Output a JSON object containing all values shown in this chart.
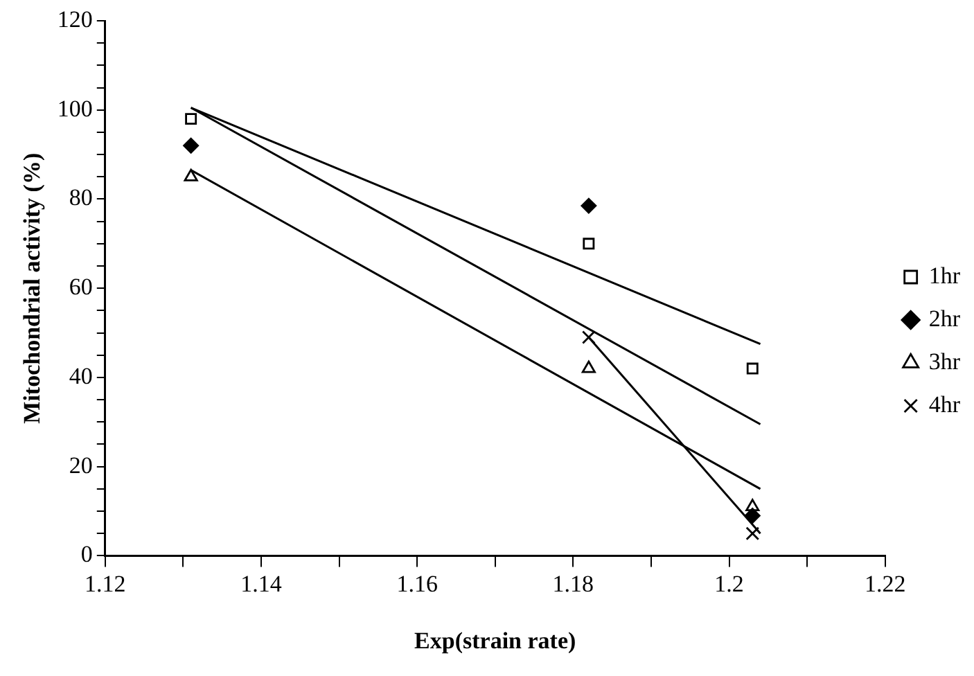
{
  "chart_data": {
    "type": "scatter",
    "xlabel": "Exp(strain rate)",
    "ylabel": "Mitochondrial activity (%)",
    "x": [
      1.131,
      1.182,
      1.203
    ],
    "xlim": [
      1.12,
      1.22
    ],
    "xticks": [
      1.12,
      {
        "value": 1.13,
        "label": null
      },
      1.14,
      {
        "value": 1.15,
        "label": null
      },
      1.16,
      {
        "value": 1.17,
        "label": null
      },
      1.18,
      {
        "value": 1.19,
        "label": null
      },
      {
        "value": 1.2,
        "label": "1.2"
      },
      {
        "value": 1.21,
        "label": null
      },
      1.22
    ],
    "ylim": [
      0,
      120
    ],
    "yticks": [
      0,
      {
        "value": 5,
        "label": null
      },
      {
        "value": 10,
        "label": null
      },
      {
        "value": 15,
        "label": null
      },
      20,
      {
        "value": 25,
        "label": null
      },
      {
        "value": 30,
        "label": null
      },
      {
        "value": 35,
        "label": null
      },
      40,
      {
        "value": 45,
        "label": null
      },
      {
        "value": 50,
        "label": null
      },
      {
        "value": 55,
        "label": null
      },
      60,
      {
        "value": 65,
        "label": null
      },
      {
        "value": 70,
        "label": null
      },
      {
        "value": 75,
        "label": null
      },
      80,
      {
        "value": 85,
        "label": null
      },
      {
        "value": 90,
        "label": null
      },
      {
        "value": 95,
        "label": null
      },
      100,
      {
        "value": 105,
        "label": null
      },
      {
        "value": 110,
        "label": null
      },
      {
        "value": 115,
        "label": null
      },
      120
    ],
    "legend": "right",
    "series": [
      {
        "name": "1hr",
        "color": "#000000",
        "marker": "square",
        "values": [
          98,
          70,
          42
        ]
      },
      {
        "name": "2hr",
        "color": "#000000",
        "marker": "diamond",
        "values": [
          92,
          78.5,
          9
        ]
      },
      {
        "name": "3hr",
        "color": "#000000",
        "marker": "triangle",
        "values": [
          85,
          42,
          11
        ]
      },
      {
        "name": "4hr",
        "color": "#000000",
        "marker": "cross",
        "values": [
          null,
          49,
          5
        ]
      },
      {
        "type": "line",
        "color": "#000000",
        "marker": "none",
        "x": [
          1.131,
          1.204
        ],
        "values": [
          100.5,
          47.5
        ]
      },
      {
        "type": "line",
        "color": "#000000",
        "marker": "none",
        "x": [
          1.131,
          1.204
        ],
        "values": [
          100.5,
          29.5
        ]
      },
      {
        "type": "line",
        "color": "#000000",
        "marker": "none",
        "x": [
          1.131,
          1.204
        ],
        "values": [
          86.5,
          15
        ]
      },
      {
        "type": "line",
        "color": "#000000",
        "marker": "none",
        "x": [
          1.182,
          1.204
        ],
        "values": [
          49,
          5
        ]
      }
    ]
  }
}
